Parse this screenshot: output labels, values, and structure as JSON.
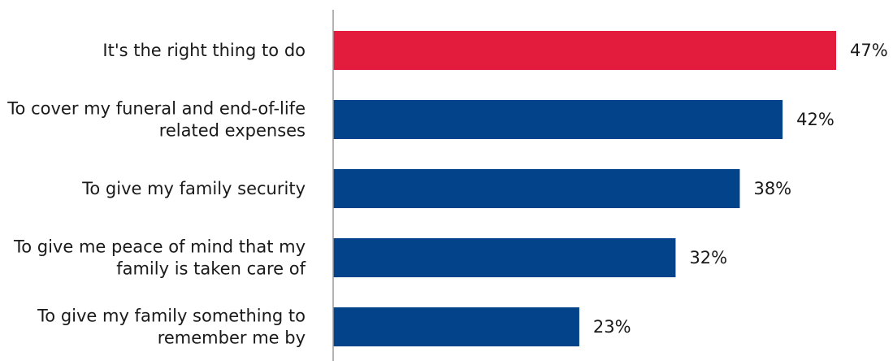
{
  "chart_data": {
    "type": "bar",
    "orientation": "horizontal",
    "categories": [
      [
        "It's the right thing to do"
      ],
      [
        "To cover my funeral and end-of-life",
        "related expenses"
      ],
      [
        "To give my family security"
      ],
      [
        "To give me peace of mind that my",
        "family is taken care of"
      ],
      [
        "To give my family something to",
        "remember me by"
      ]
    ],
    "values": [
      47,
      42,
      38,
      32,
      23
    ],
    "value_labels": [
      "47%",
      "42%",
      "38%",
      "32%",
      "23%"
    ],
    "unit": "%",
    "xlim": [
      0,
      47
    ],
    "grid": false,
    "legend": "none",
    "colors": {
      "highlight": "#e31b3d",
      "bar": "#03438a",
      "axis": "#9a9a9a"
    },
    "highlight_index": 0
  }
}
